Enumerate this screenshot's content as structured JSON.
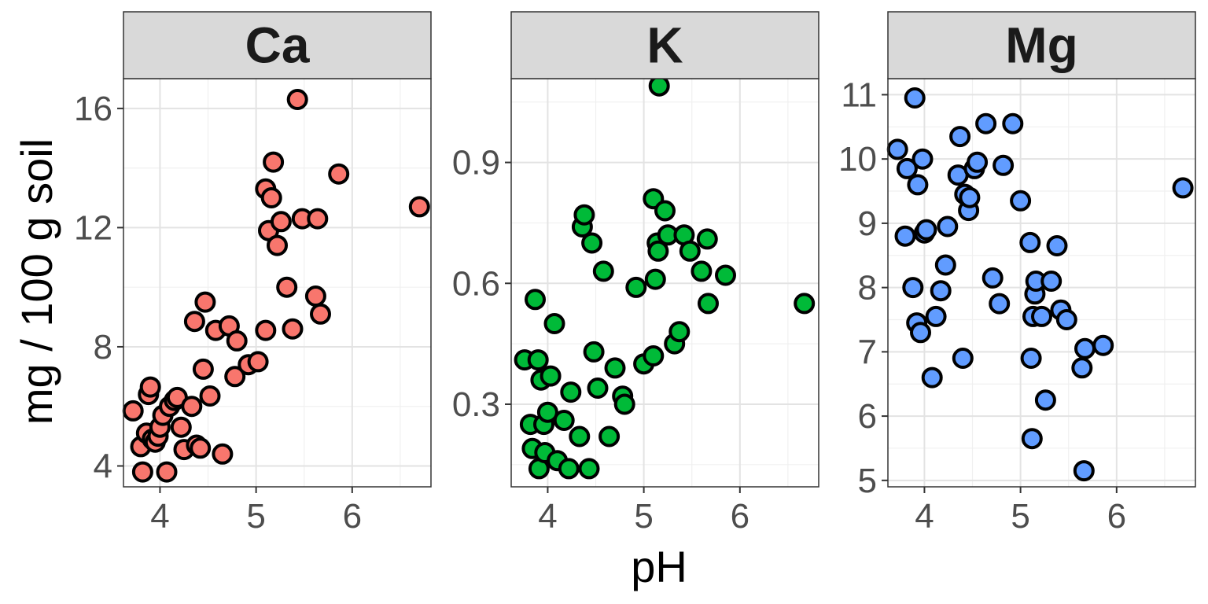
{
  "chart_data": {
    "type": "scatter",
    "xlabel": "pH",
    "ylabel": "mg / 100 g soil",
    "x_ticks": [
      4,
      5,
      6
    ],
    "xlim": [
      3.62,
      6.82
    ],
    "grid": true,
    "legend": "none",
    "panels": [
      {
        "name": "Ca",
        "color": "#F8766D",
        "ylim": [
          3.3,
          17.0
        ],
        "y_ticks": [
          4,
          8,
          12,
          16
        ],
        "points": [
          [
            3.72,
            5.85
          ],
          [
            3.8,
            4.65
          ],
          [
            3.82,
            3.8
          ],
          [
            3.86,
            5.1
          ],
          [
            3.88,
            6.4
          ],
          [
            3.9,
            6.65
          ],
          [
            3.92,
            4.9
          ],
          [
            3.95,
            4.8
          ],
          [
            3.98,
            5.0
          ],
          [
            4.0,
            5.3
          ],
          [
            4.03,
            5.7
          ],
          [
            4.07,
            3.8
          ],
          [
            4.1,
            6.0
          ],
          [
            4.15,
            6.2
          ],
          [
            4.18,
            6.3
          ],
          [
            4.22,
            5.3
          ],
          [
            4.25,
            4.55
          ],
          [
            4.33,
            6.0
          ],
          [
            4.36,
            8.85
          ],
          [
            4.38,
            4.7
          ],
          [
            4.42,
            4.6
          ],
          [
            4.45,
            7.25
          ],
          [
            4.47,
            9.5
          ],
          [
            4.52,
            6.35
          ],
          [
            4.58,
            8.55
          ],
          [
            4.65,
            4.4
          ],
          [
            4.72,
            8.7
          ],
          [
            4.78,
            7.0
          ],
          [
            4.8,
            8.2
          ],
          [
            4.92,
            7.4
          ],
          [
            5.02,
            7.5
          ],
          [
            5.1,
            8.55
          ],
          [
            5.1,
            13.3
          ],
          [
            5.13,
            11.9
          ],
          [
            5.16,
            13.0
          ],
          [
            5.18,
            14.2
          ],
          [
            5.22,
            11.4
          ],
          [
            5.26,
            12.2
          ],
          [
            5.32,
            10.0
          ],
          [
            5.38,
            8.6
          ],
          [
            5.43,
            16.3
          ],
          [
            5.48,
            12.3
          ],
          [
            5.62,
            9.7
          ],
          [
            5.64,
            12.3
          ],
          [
            5.67,
            9.1
          ],
          [
            5.86,
            13.8
          ],
          [
            6.7,
            12.7
          ]
        ]
      },
      {
        "name": "K",
        "color": "#00BA38",
        "ylim": [
          0.095,
          1.108
        ],
        "y_ticks": [
          0.3,
          0.6,
          0.9
        ],
        "y_tick_labels": [
          "0.3",
          "0.6",
          "0.9"
        ],
        "points": [
          [
            3.76,
            0.41
          ],
          [
            3.82,
            0.25
          ],
          [
            3.84,
            0.19
          ],
          [
            3.87,
            0.56
          ],
          [
            3.9,
            0.41
          ],
          [
            3.91,
            0.14
          ],
          [
            3.93,
            0.36
          ],
          [
            3.96,
            0.25
          ],
          [
            3.97,
            0.18
          ],
          [
            4.0,
            0.28
          ],
          [
            4.03,
            0.37
          ],
          [
            4.07,
            0.5
          ],
          [
            4.1,
            0.16
          ],
          [
            4.17,
            0.26
          ],
          [
            4.22,
            0.14
          ],
          [
            4.24,
            0.33
          ],
          [
            4.33,
            0.22
          ],
          [
            4.36,
            0.74
          ],
          [
            4.38,
            0.77
          ],
          [
            4.43,
            0.14
          ],
          [
            4.46,
            0.7
          ],
          [
            4.48,
            0.43
          ],
          [
            4.52,
            0.34
          ],
          [
            4.58,
            0.63
          ],
          [
            4.64,
            0.22
          ],
          [
            4.7,
            0.39
          ],
          [
            4.78,
            0.32
          ],
          [
            4.8,
            0.3
          ],
          [
            4.92,
            0.59
          ],
          [
            5.0,
            0.4
          ],
          [
            5.1,
            0.81
          ],
          [
            5.1,
            0.42
          ],
          [
            5.12,
            0.61
          ],
          [
            5.14,
            0.7
          ],
          [
            5.15,
            0.68
          ],
          [
            5.16,
            1.09
          ],
          [
            5.22,
            0.78
          ],
          [
            5.25,
            0.72
          ],
          [
            5.32,
            0.45
          ],
          [
            5.37,
            0.48
          ],
          [
            5.42,
            0.72
          ],
          [
            5.48,
            0.68
          ],
          [
            5.6,
            0.63
          ],
          [
            5.66,
            0.71
          ],
          [
            5.67,
            0.55
          ],
          [
            5.85,
            0.62
          ],
          [
            6.67,
            0.55
          ]
        ]
      },
      {
        "name": "Mg",
        "color": "#619CFF",
        "ylim": [
          4.9,
          11.25
        ],
        "y_ticks": [
          5,
          6,
          7,
          8,
          9,
          10,
          11
        ],
        "points": [
          [
            3.72,
            10.15
          ],
          [
            3.8,
            8.8
          ],
          [
            3.82,
            9.85
          ],
          [
            3.88,
            8.0
          ],
          [
            3.9,
            10.95
          ],
          [
            3.92,
            7.45
          ],
          [
            3.93,
            9.6
          ],
          [
            3.96,
            7.3
          ],
          [
            3.98,
            10.0
          ],
          [
            4.0,
            8.85
          ],
          [
            4.02,
            8.9
          ],
          [
            4.08,
            6.6
          ],
          [
            4.12,
            7.55
          ],
          [
            4.17,
            7.95
          ],
          [
            4.22,
            8.35
          ],
          [
            4.24,
            8.95
          ],
          [
            4.35,
            9.75
          ],
          [
            4.37,
            10.35
          ],
          [
            4.4,
            6.9
          ],
          [
            4.42,
            9.45
          ],
          [
            4.46,
            9.2
          ],
          [
            4.47,
            9.4
          ],
          [
            4.52,
            9.85
          ],
          [
            4.55,
            9.95
          ],
          [
            4.64,
            10.55
          ],
          [
            4.71,
            8.15
          ],
          [
            4.78,
            7.75
          ],
          [
            4.82,
            9.9
          ],
          [
            4.92,
            10.55
          ],
          [
            5.0,
            9.35
          ],
          [
            5.1,
            8.7
          ],
          [
            5.11,
            6.9
          ],
          [
            5.12,
            5.65
          ],
          [
            5.13,
            7.55
          ],
          [
            5.15,
            7.9
          ],
          [
            5.16,
            8.1
          ],
          [
            5.22,
            7.55
          ],
          [
            5.26,
            6.25
          ],
          [
            5.32,
            8.1
          ],
          [
            5.38,
            8.65
          ],
          [
            5.42,
            7.65
          ],
          [
            5.48,
            7.5
          ],
          [
            5.64,
            6.75
          ],
          [
            5.66,
            5.15
          ],
          [
            5.67,
            7.05
          ],
          [
            5.86,
            7.1
          ],
          [
            6.69,
            9.55
          ]
        ]
      }
    ]
  }
}
